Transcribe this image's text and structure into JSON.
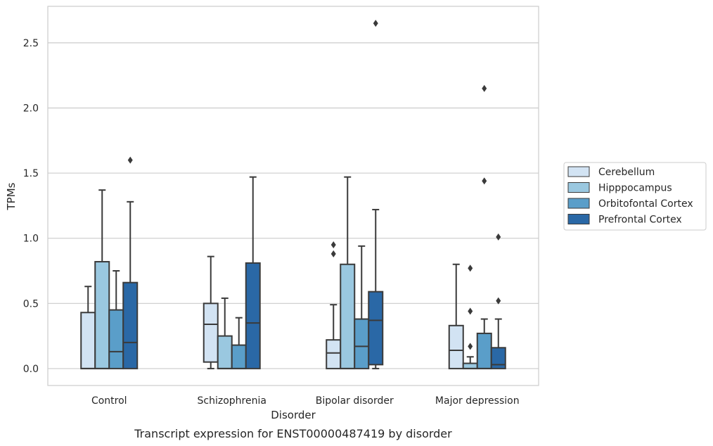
{
  "chart_data": {
    "type": "box",
    "title": "Transcript expression for ENST00000487419 by disorder",
    "xlabel": "Disorder",
    "ylabel": "TPMs",
    "categories": [
      "Control",
      "Schizophrenia",
      "Bipolar disorder",
      "Major depression"
    ],
    "ylim": [
      -0.13,
      2.78
    ],
    "yticks": [
      0.0,
      0.5,
      1.0,
      1.5,
      2.0,
      2.5
    ],
    "ytick_labels": [
      "0.0",
      "0.5",
      "1.0",
      "1.5",
      "2.0",
      "2.5"
    ],
    "grid": true,
    "legend_position": "right",
    "series": [
      {
        "name": "Cerebellum",
        "color": "#d2e3f3",
        "boxes": [
          {
            "min": 0.0,
            "q1": 0.0,
            "median": 0.0,
            "q3": 0.43,
            "max": 0.63,
            "outliers": []
          },
          {
            "min": 0.0,
            "q1": 0.05,
            "median": 0.34,
            "q3": 0.5,
            "max": 0.86,
            "outliers": []
          },
          {
            "min": 0.0,
            "q1": 0.0,
            "median": 0.12,
            "q3": 0.22,
            "max": 0.49,
            "outliers": [
              0.88,
              0.95
            ]
          },
          {
            "min": 0.0,
            "q1": 0.0,
            "median": 0.14,
            "q3": 0.33,
            "max": 0.8,
            "outliers": []
          }
        ]
      },
      {
        "name": "Hipppocampus",
        "color": "#9ac8e0",
        "boxes": [
          {
            "min": 0.0,
            "q1": 0.0,
            "median": 0.0,
            "q3": 0.82,
            "max": 1.37,
            "outliers": []
          },
          {
            "min": 0.0,
            "q1": 0.0,
            "median": 0.0,
            "q3": 0.25,
            "max": 0.54,
            "outliers": []
          },
          {
            "min": 0.0,
            "q1": 0.0,
            "median": 0.0,
            "q3": 0.8,
            "max": 1.47,
            "outliers": []
          },
          {
            "min": 0.0,
            "q1": 0.0,
            "median": 0.0,
            "q3": 0.04,
            "max": 0.09,
            "outliers": [
              0.17,
              0.44,
              0.77
            ]
          }
        ]
      },
      {
        "name": "Orbitofontal Cortex",
        "color": "#5a9ec9",
        "boxes": [
          {
            "min": 0.0,
            "q1": 0.0,
            "median": 0.13,
            "q3": 0.45,
            "max": 0.75,
            "outliers": []
          },
          {
            "min": 0.0,
            "q1": 0.0,
            "median": 0.0,
            "q3": 0.18,
            "max": 0.39,
            "outliers": []
          },
          {
            "min": 0.0,
            "q1": 0.0,
            "median": 0.17,
            "q3": 0.38,
            "max": 0.94,
            "outliers": []
          },
          {
            "min": 0.0,
            "q1": 0.0,
            "median": 0.0,
            "q3": 0.27,
            "max": 0.38,
            "outliers": [
              1.44,
              2.15
            ]
          }
        ]
      },
      {
        "name": "Prefrontal Cortex",
        "color": "#2a68a6",
        "boxes": [
          {
            "min": 0.0,
            "q1": 0.0,
            "median": 0.2,
            "q3": 0.66,
            "max": 1.28,
            "outliers": [
              1.6
            ]
          },
          {
            "min": 0.0,
            "q1": 0.0,
            "median": 0.35,
            "q3": 0.81,
            "max": 1.47,
            "outliers": []
          },
          {
            "min": 0.0,
            "q1": 0.03,
            "median": 0.37,
            "q3": 0.59,
            "max": 1.22,
            "outliers": [
              2.65
            ]
          },
          {
            "min": 0.0,
            "q1": 0.0,
            "median": 0.03,
            "q3": 0.16,
            "max": 0.38,
            "outliers": [
              0.52,
              1.01
            ]
          }
        ]
      }
    ]
  }
}
